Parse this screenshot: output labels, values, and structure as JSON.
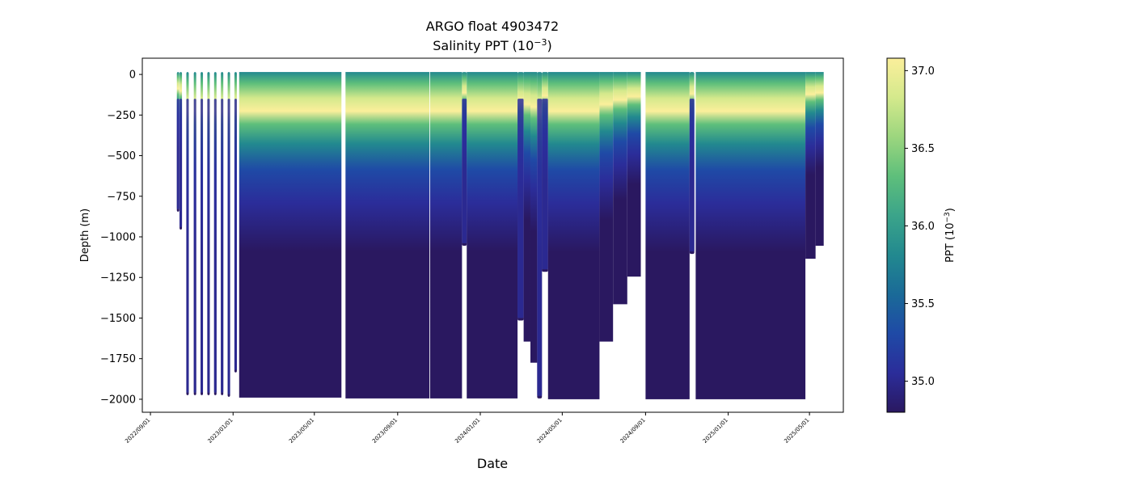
{
  "chart_data": {
    "type": "heatmap",
    "title_line1": "ARGO float 4903472",
    "title_line2_main": "Salinity PPT (10",
    "title_line2_exp": "−3",
    "title_line2_close": ")",
    "xlabel": "Date",
    "ylabel": "Depth (m)",
    "x_tick_labels": [
      "2022/09/01",
      "2023/01/01",
      "2023/05/01",
      "2023/09/01",
      "2024/01/01",
      "2024/05/01",
      "2024/09/01",
      "2025/01/01",
      "2025/05/01"
    ],
    "y_tick_labels": [
      "0",
      "−250",
      "−500",
      "−750",
      "−1000",
      "−1250",
      "−1500",
      "−1750",
      "−2000"
    ],
    "y_ticks": [
      0,
      -250,
      -500,
      -750,
      -1000,
      -1250,
      -1500,
      -1750,
      -2000
    ],
    "xlim": [
      "2022-08-20",
      "2025-06-20"
    ],
    "ylim": [
      -2080,
      100
    ],
    "colorbar": {
      "label_main": "PPT (10",
      "label_exp": "−3",
      "label_close": ")",
      "range": [
        34.8,
        37.08
      ],
      "ticks": [
        35.0,
        35.5,
        36.0,
        36.5,
        37.0
      ],
      "tick_labels": [
        "35.0",
        "35.5",
        "36.0",
        "36.5",
        "37.0"
      ],
      "colormap": [
        "#2a1860",
        "#2b2d9a",
        "#1f4aa6",
        "#1a6a98",
        "#22898f",
        "#3ba48a",
        "#5ebf7b",
        "#9cd67e",
        "#d4e98c",
        "#fbef9b"
      ]
    },
    "series": [
      {
        "start": "2022-10-10",
        "end": "2022-10-13",
        "max_depth": -830
      },
      {
        "start": "2022-10-14",
        "end": "2022-10-17",
        "max_depth": -940
      },
      {
        "start": "2022-10-24",
        "end": "2022-10-27",
        "max_depth": -1960
      },
      {
        "start": "2022-11-04",
        "end": "2022-11-07",
        "max_depth": -1960
      },
      {
        "start": "2022-11-14",
        "end": "2022-11-17",
        "max_depth": -1960
      },
      {
        "start": "2022-11-24",
        "end": "2022-11-27",
        "max_depth": -1960
      },
      {
        "start": "2022-12-04",
        "end": "2022-12-07",
        "max_depth": -1960
      },
      {
        "start": "2022-12-14",
        "end": "2022-12-17",
        "max_depth": -1960
      },
      {
        "start": "2022-12-24",
        "end": "2022-12-27",
        "max_depth": -1970
      },
      {
        "start": "2023-01-03",
        "end": "2023-01-06",
        "max_depth": -1820
      },
      {
        "start": "2023-01-10",
        "end": "2023-06-10",
        "max_depth": -1975
      },
      {
        "start": "2023-06-16",
        "end": "2023-10-18",
        "max_depth": -1980
      },
      {
        "start": "2023-10-19",
        "end": "2023-12-05",
        "max_depth": -1980
      },
      {
        "start": "2023-12-05",
        "end": "2023-12-12",
        "max_depth": -1040
      },
      {
        "start": "2023-12-12",
        "end": "2024-02-25",
        "max_depth": -1980
      },
      {
        "start": "2024-02-25",
        "end": "2024-03-05",
        "max_depth": -1500
      },
      {
        "start": "2024-03-05",
        "end": "2024-03-15",
        "max_depth": -1630
      },
      {
        "start": "2024-03-15",
        "end": "2024-03-25",
        "max_depth": -1760
      },
      {
        "start": "2024-03-25",
        "end": "2024-04-01",
        "max_depth": -1980
      },
      {
        "start": "2024-04-01",
        "end": "2024-04-10",
        "max_depth": -1200
      },
      {
        "start": "2024-04-10",
        "end": "2024-06-25",
        "max_depth": -1985
      },
      {
        "start": "2024-06-25",
        "end": "2024-07-15",
        "max_depth": -1630
      },
      {
        "start": "2024-07-15",
        "end": "2024-08-05",
        "max_depth": -1400
      },
      {
        "start": "2024-08-05",
        "end": "2024-08-25",
        "max_depth": -1230
      },
      {
        "start": "2024-09-01",
        "end": "2024-11-05",
        "max_depth": -1985
      },
      {
        "start": "2024-11-05",
        "end": "2024-11-12",
        "max_depth": -1090
      },
      {
        "start": "2024-11-14",
        "end": "2025-04-25",
        "max_depth": -1985
      },
      {
        "start": "2025-04-25",
        "end": "2025-05-10",
        "max_depth": -1120
      },
      {
        "start": "2025-05-10",
        "end": "2025-05-22",
        "max_depth": -1040
      }
    ]
  }
}
